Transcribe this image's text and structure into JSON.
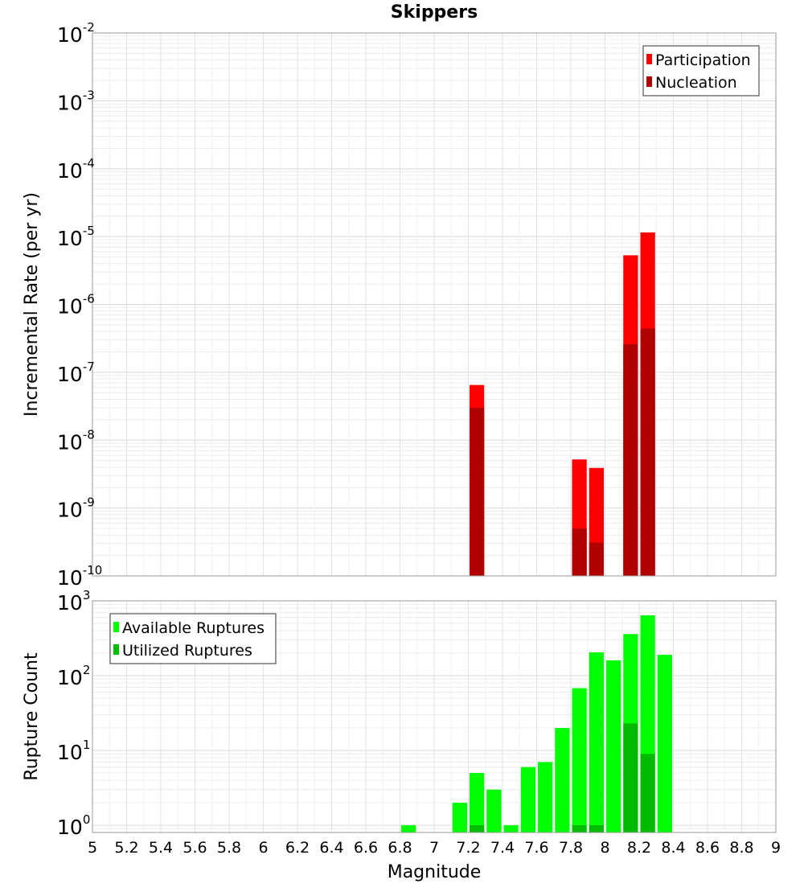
{
  "chart_data": {
    "title": "Skippers",
    "xlabel": "Magnitude",
    "xlim": [
      5,
      9
    ],
    "xticks": [
      "5",
      "5.2",
      "5.4",
      "5.6",
      "5.8",
      "6",
      "6.2",
      "6.4",
      "6.6",
      "6.8",
      "7",
      "7.2",
      "7.4",
      "7.6",
      "7.8",
      "8",
      "8.2",
      "8.4",
      "8.6",
      "8.8",
      "9"
    ],
    "bin_width": 0.1,
    "panels": [
      {
        "type": "bar",
        "ylabel": "Incremental Rate (per yr)",
        "yscale": "log",
        "ylim_exponents": [
          -10,
          -2
        ],
        "tick_exponents": [
          "-10",
          "-9",
          "-8",
          "-7",
          "-6",
          "-5",
          "-4",
          "-3",
          "-2"
        ],
        "grid": true,
        "legend_position": "top-right",
        "series": [
          {
            "name": "Participation",
            "color": "#ff0000",
            "x": [
              7.25,
              7.85,
              7.95,
              8.15,
              8.25
            ],
            "values": [
              6.5e-08,
              5.2e-09,
              3.9e-09,
              5.3e-06,
              1.15e-05
            ]
          },
          {
            "name": "Nucleation",
            "color": "#b00000",
            "x": [
              7.25,
              7.85,
              7.95,
              8.15,
              8.25
            ],
            "values": [
              3e-08,
              5e-10,
              3.1e-10,
              2.6e-07,
              4.4e-07
            ]
          }
        ]
      },
      {
        "type": "bar",
        "ylabel": "Rupture Count",
        "yscale": "log",
        "ylim": [
          0.8,
          1000
        ],
        "tick_exponents": [
          "0",
          "1",
          "2",
          "3"
        ],
        "grid": true,
        "legend_position": "top-left",
        "series": [
          {
            "name": "Available Ruptures",
            "color": "#00ff00",
            "x": [
              6.85,
              7.15,
              7.25,
              7.35,
              7.45,
              7.55,
              7.65,
              7.75,
              7.85,
              7.95,
              8.05,
              8.15,
              8.25,
              8.35
            ],
            "values": [
              1,
              2,
              5,
              3,
              1,
              6,
              7,
              20,
              68,
              205,
              160,
              360,
              640,
              190
            ]
          },
          {
            "name": "Utilized Ruptures",
            "color": "#00bb00",
            "x": [
              7.25,
              7.85,
              7.95,
              8.15,
              8.25
            ],
            "values": [
              1,
              1,
              1,
              23,
              9
            ]
          }
        ]
      }
    ]
  }
}
